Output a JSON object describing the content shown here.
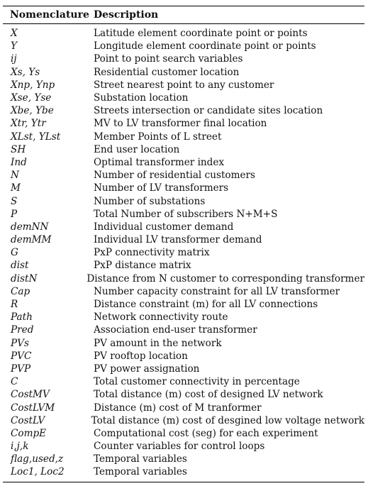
{
  "header": {
    "col1": "Nomenclature",
    "col2": "Description"
  },
  "rows": [
    {
      "symbol": "X",
      "description": "Latitude element coordinate point or points"
    },
    {
      "symbol": "Y",
      "description": "Longitude element coordinate point or points"
    },
    {
      "symbol": "ij",
      "description": "Point to point search variables"
    },
    {
      "symbol": "Xs, Ys",
      "description": "Residential customer location"
    },
    {
      "symbol": "Xnp, Ynp",
      "description": "Street nearest point to any customer"
    },
    {
      "symbol": "Xse, Yse",
      "description": "Substation location"
    },
    {
      "symbol": "Xbe, Ybe",
      "description": "Streets intersection or candidate sites location"
    },
    {
      "symbol": "Xtr, Ytr",
      "description": "MV to LV transformer final location"
    },
    {
      "symbol": "XLst, YLst",
      "description": "Member Points of L street"
    },
    {
      "symbol": "SH",
      "description": "End user location"
    },
    {
      "symbol": "Ind",
      "description": "Optimal transformer index"
    },
    {
      "symbol": "N",
      "description": "Number of residential customers"
    },
    {
      "symbol": "M",
      "description": "Number of LV transformers"
    },
    {
      "symbol": "S",
      "description": "Number of substations"
    },
    {
      "symbol": "P",
      "description": "Total Number of subscribers N+M+S"
    },
    {
      "symbol": "demNN",
      "description": "Individual customer demand"
    },
    {
      "symbol": "demMM",
      "description": "Individual LV transformer demand"
    },
    {
      "symbol": "G",
      "description": "PxP connectivity matrix"
    },
    {
      "symbol": "dist",
      "description": "PxP distance matrix"
    },
    {
      "symbol": "distN",
      "description": "Distance from N customer to corresponding transformer"
    },
    {
      "symbol": "Cap",
      "description": "Number capacity constraint for all LV transformer"
    },
    {
      "symbol": "R",
      "description": "Distance constraint (m) for all LV connections"
    },
    {
      "symbol": "Path",
      "description": "Network connectivity route"
    },
    {
      "symbol": "Pred",
      "description": "Association end-user transformer"
    },
    {
      "symbol": "PVs",
      "description": "PV amount in the network"
    },
    {
      "symbol": "PVC",
      "description": "PV rooftop location"
    },
    {
      "symbol": "PVP",
      "description": "PV power assignation"
    },
    {
      "symbol": "C",
      "description": "Total customer connectivity in percentage"
    },
    {
      "symbol": "CostMV",
      "description": "Total distance (m) cost of designed LV network"
    },
    {
      "symbol": "CostLVM",
      "description": "Distance (m) cost of M tranformer"
    },
    {
      "symbol": "CostLV",
      "description": "Total distance (m) cost of desgined low voltage network"
    },
    {
      "symbol": "CompE",
      "description": "Computational cost (seg) for each experiment"
    },
    {
      "symbol": "i,j,k",
      "description": "Counter variables for control loops"
    },
    {
      "symbol": "flag,used,z",
      "description": "Temporal variables"
    },
    {
      "symbol": "Loc1, Loc2",
      "description": "Temporal variables"
    }
  ]
}
